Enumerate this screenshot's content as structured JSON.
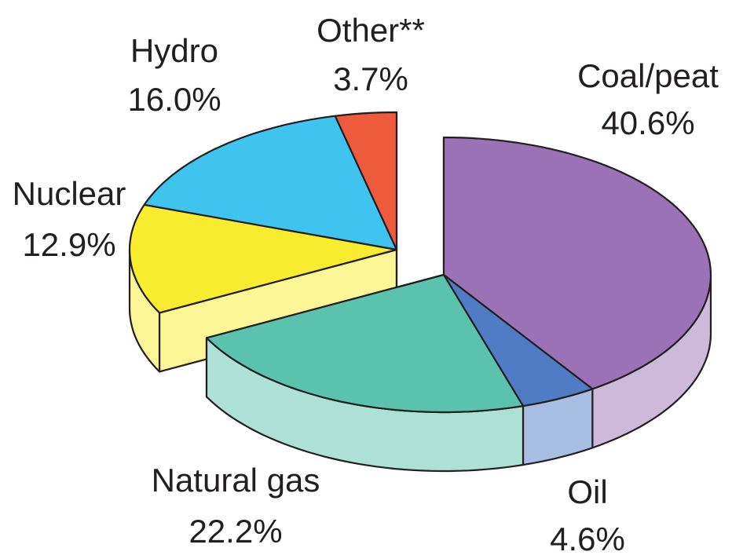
{
  "chart_data": {
    "type": "pie",
    "categories": [
      "Coal/peat",
      "Oil",
      "Natural gas",
      "Nuclear",
      "Hydro",
      "Other**"
    ],
    "values": [
      40.6,
      4.6,
      22.2,
      12.9,
      16.0,
      3.7
    ],
    "value_labels": [
      "40.6%",
      "4.6%",
      "22.2%",
      "12.9%",
      "16.0%",
      "3.7%"
    ],
    "colors": [
      "#9b72b5",
      "#4f7cc4",
      "#5bc2ad",
      "#f8ec2e",
      "#3fc4f0",
      "#ee5a3c"
    ]
  }
}
